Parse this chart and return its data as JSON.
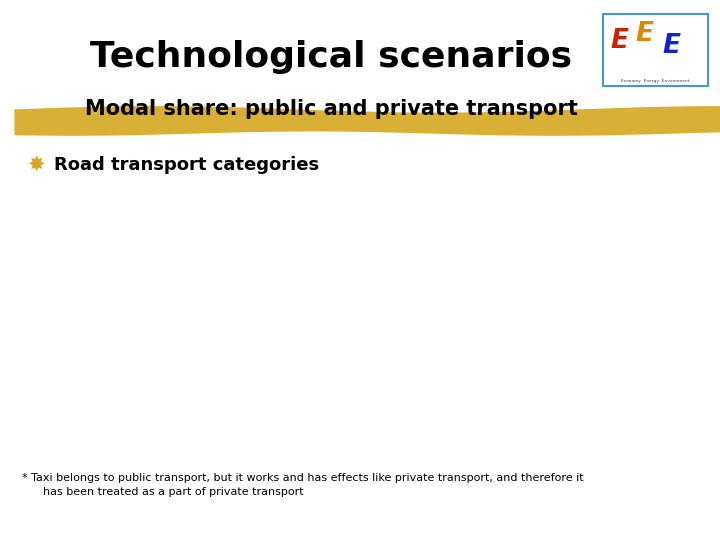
{
  "title": "Technological scenarios",
  "subtitle": "Modal share: public and private transport",
  "bullet_symbol": "✸",
  "bullet_text": "Road transport categories",
  "footnote_line1": "* Taxi belongs to public transport, but it works and has effects like private transport, and therefore it",
  "footnote_line2": "      has been treated as a part of private transport",
  "background_color": "#ffffff",
  "title_color": "#000000",
  "subtitle_color": "#000000",
  "bullet_symbol_color": "#DAA520",
  "bullet_text_color": "#000000",
  "footnote_color": "#000000",
  "highlight_color": "#D4A820",
  "title_fontsize": 26,
  "subtitle_fontsize": 15,
  "bullet_fontsize": 13,
  "footnote_fontsize": 8,
  "logo_box_color": "#4499CC",
  "logo_E1_color": "#CC2200",
  "logo_E2_color": "#DD8800",
  "logo_E3_color": "#1122CC"
}
